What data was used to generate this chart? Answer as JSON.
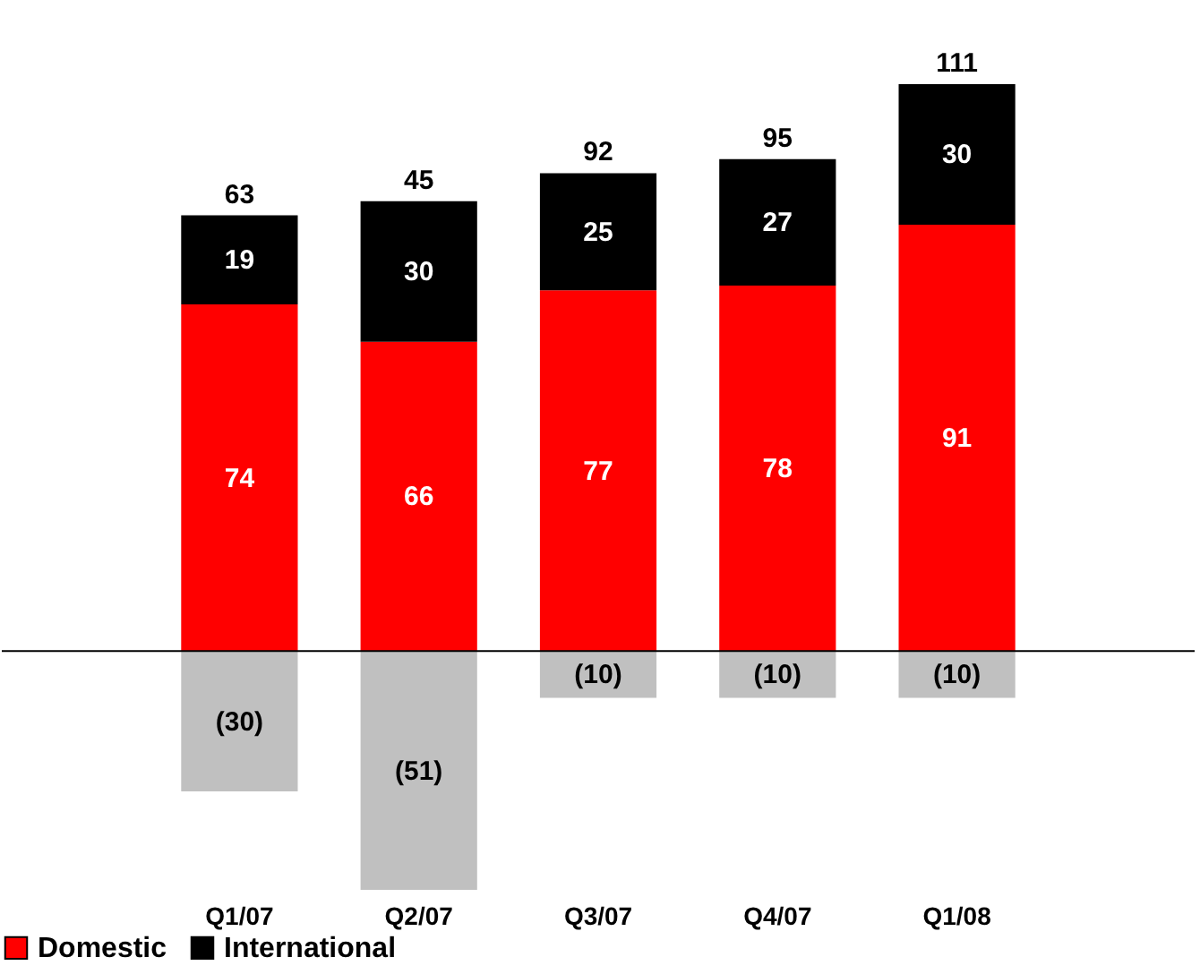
{
  "chart_data": {
    "type": "bar",
    "stacked": true,
    "categories": [
      "Q1/07",
      "Q2/07",
      "Q3/07",
      "Q4/07",
      "Q1/08"
    ],
    "series": [
      {
        "color": "#c0c0c0",
        "values": [
          -30,
          -51,
          -10,
          -10,
          -10
        ],
        "value_labels": [
          "(30)",
          "(51)",
          "(10)",
          "(10)",
          "(10)"
        ]
      },
      {
        "name": "Domestic",
        "color": "#ff0000",
        "values": [
          74,
          66,
          77,
          78,
          91
        ],
        "value_labels": [
          "74",
          "66",
          "77",
          "78",
          "91"
        ]
      },
      {
        "name": "International",
        "color": "#000000",
        "values": [
          19,
          30,
          25,
          27,
          30
        ],
        "value_labels": [
          "19",
          "30",
          "25",
          "27",
          "30"
        ]
      }
    ],
    "totals": [
      "63",
      "45",
      "92",
      "95",
      "111"
    ],
    "legend": "bottom",
    "grid": false
  }
}
